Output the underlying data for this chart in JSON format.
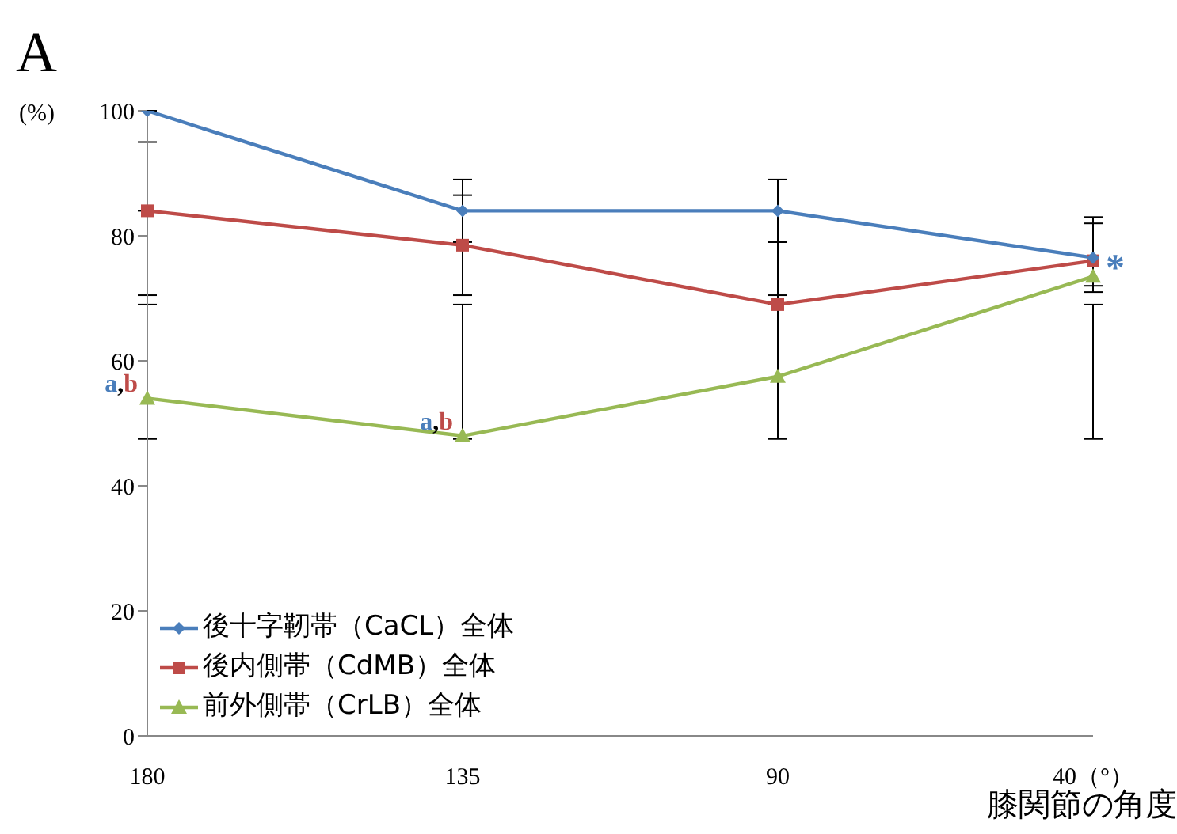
{
  "chart_data": {
    "type": "line",
    "title": "A",
    "ylabel": "(%)",
    "xlabel": "膝関節の角度",
    "categories": [
      "180",
      "135",
      "90",
      "40（°）"
    ],
    "ylim": [
      0,
      100
    ],
    "yticks": [
      0,
      20,
      40,
      60,
      80,
      100
    ],
    "legend": "bottom left",
    "line_style": "solid",
    "series": [
      {
        "name": "後十字靭帯（CaCL）全体",
        "color": "#4a7ebb",
        "marker": "diamond",
        "values": [
          100,
          84,
          84,
          76.5
        ],
        "errors": [
          [
            95,
            100
          ],
          [
            79,
            89
          ],
          [
            79,
            89
          ],
          [
            71,
            83
          ]
        ]
      },
      {
        "name": "後内側帯（CdMB）全体",
        "color": "#be4b48",
        "marker": "square",
        "values": [
          84,
          78.5,
          69,
          76
        ],
        "errors": [
          [
            70.5,
            84
          ],
          [
            70.5,
            86.5
          ],
          [
            69,
            79
          ],
          [
            72,
            82
          ]
        ]
      },
      {
        "name": "前外側帯（CrLB）全体",
        "color": "#98b954",
        "marker": "triangle",
        "values": [
          54,
          48,
          57.5,
          73.5
        ],
        "errors": [
          [
            47.5,
            69
          ],
          [
            47.5,
            69
          ],
          [
            47.5,
            70.5
          ],
          [
            47.5,
            69
          ]
        ]
      }
    ],
    "annotations": [
      {
        "text": "a,b",
        "x": "180",
        "y": 54
      },
      {
        "text": "a,b",
        "x": "135",
        "y": 48
      },
      {
        "text": "*",
        "x": "40（°）",
        "y": 76
      }
    ]
  }
}
